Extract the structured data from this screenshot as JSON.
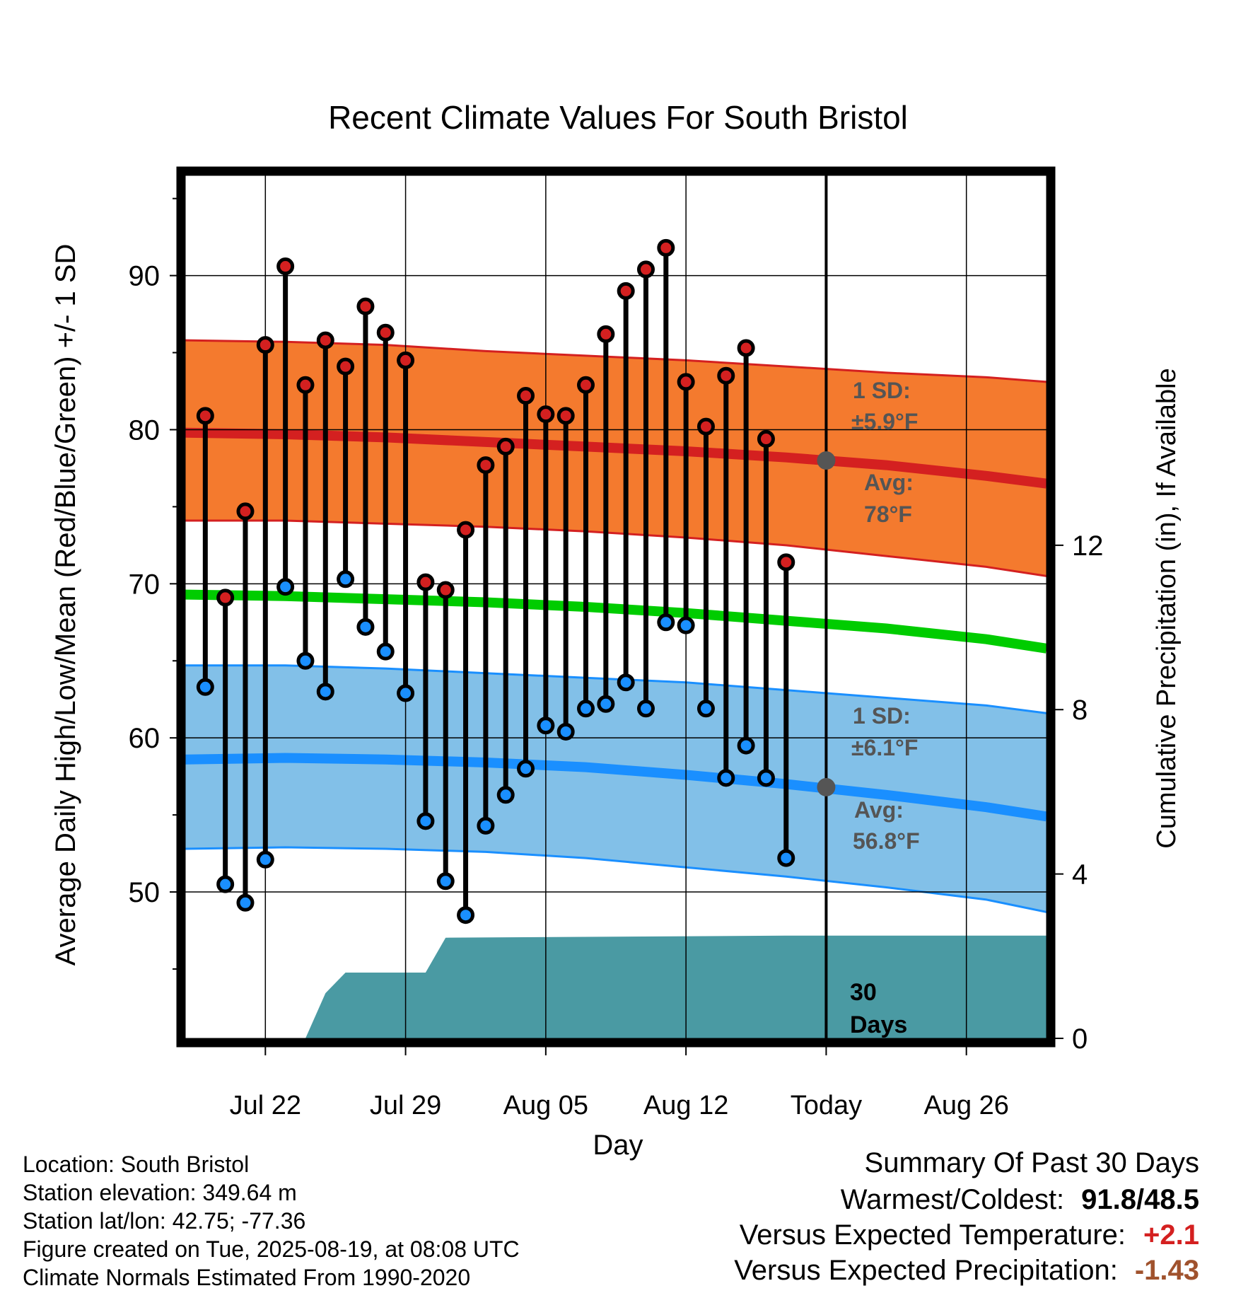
{
  "chart_data": {
    "type": "line",
    "title": "Recent Climate Values For South Bristol",
    "xlabel": "Day",
    "ylabel": "Average Daily High/Low/Mean (Red/Blue/Green) +/- 1 SD",
    "y2label": "Cumulative Precipitation (in), If Available",
    "ylim": [
      40.5,
      96.5
    ],
    "y2lim": [
      0,
      21
    ],
    "xlim": [
      "2025-07-18",
      "2025-08-30"
    ],
    "yticks": [
      "90",
      "80",
      "70",
      "60",
      "50"
    ],
    "y2ticks": [
      "12",
      "8",
      "4",
      "0"
    ],
    "xticks": [
      {
        "date": "2025-07-22",
        "label": "Jul 22"
      },
      {
        "date": "2025-07-29",
        "label": "Jul 29"
      },
      {
        "date": "2025-08-05",
        "label": "Aug 05"
      },
      {
        "date": "2025-08-12",
        "label": "Aug 12"
      },
      {
        "date": "2025-08-19",
        "label": "Today"
      },
      {
        "date": "2025-08-26",
        "label": "Aug 26"
      }
    ],
    "today": "2025-08-19",
    "window_label": "30 Days",
    "daily": {
      "dates": [
        "2025-07-19",
        "2025-07-20",
        "2025-07-21",
        "2025-07-22",
        "2025-07-23",
        "2025-07-24",
        "2025-07-25",
        "2025-07-26",
        "2025-07-27",
        "2025-07-28",
        "2025-07-29",
        "2025-07-30",
        "2025-07-31",
        "2025-08-01",
        "2025-08-02",
        "2025-08-03",
        "2025-08-04",
        "2025-08-05",
        "2025-08-06",
        "2025-08-07",
        "2025-08-08",
        "2025-08-09",
        "2025-08-10",
        "2025-08-11",
        "2025-08-12",
        "2025-08-13",
        "2025-08-14",
        "2025-08-15",
        "2025-08-16",
        "2025-08-17",
        "2025-08-18"
      ],
      "highs": [
        80.9,
        69.1,
        74.7,
        85.5,
        90.6,
        82.9,
        85.8,
        84.1,
        88.0,
        86.3,
        84.5,
        70.1,
        69.6,
        73.5,
        77.7,
        78.9,
        82.2,
        81.0,
        80.9,
        82.9,
        86.2,
        89.0,
        90.4,
        91.8,
        83.1,
        80.2,
        83.5,
        85.3,
        79.4,
        71.4,
        null
      ],
      "lows": [
        63.3,
        50.5,
        49.3,
        52.1,
        69.8,
        65.0,
        63.0,
        70.3,
        67.2,
        65.6,
        62.9,
        54.6,
        50.7,
        48.5,
        54.3,
        56.3,
        58.0,
        60.8,
        60.4,
        61.9,
        62.2,
        63.6,
        61.9,
        67.5,
        67.3,
        61.9,
        57.4,
        59.5,
        57.4,
        52.2,
        null
      ]
    },
    "normals": {
      "dates": [
        "2025-07-18",
        "2025-07-23",
        "2025-07-28",
        "2025-08-02",
        "2025-08-07",
        "2025-08-12",
        "2025-08-17",
        "2025-08-22",
        "2025-08-27",
        "2025-08-30"
      ],
      "high_avg": [
        79.8,
        79.7,
        79.5,
        79.2,
        78.9,
        78.6,
        78.2,
        77.7,
        77.0,
        76.5
      ],
      "high_upper": [
        85.8,
        85.7,
        85.5,
        85.1,
        84.8,
        84.5,
        84.1,
        83.7,
        83.4,
        83.1
      ],
      "high_lower": [
        74.1,
        74.1,
        73.9,
        73.7,
        73.4,
        73.0,
        72.5,
        71.8,
        71.1,
        70.5
      ],
      "mean_avg": [
        69.3,
        69.2,
        69.0,
        68.8,
        68.5,
        68.1,
        67.6,
        67.1,
        66.4,
        65.8
      ],
      "low_avg": [
        58.6,
        58.7,
        58.6,
        58.4,
        58.1,
        57.6,
        57.0,
        56.3,
        55.5,
        54.9
      ],
      "low_upper": [
        64.7,
        64.7,
        64.5,
        64.2,
        63.9,
        63.6,
        63.1,
        62.6,
        62.1,
        61.6
      ],
      "low_lower": [
        52.8,
        52.9,
        52.8,
        52.6,
        52.2,
        51.6,
        51.0,
        50.3,
        49.5,
        48.7
      ]
    },
    "precip_cumulative": {
      "dates": [
        "2025-07-18",
        "2025-07-24",
        "2025-07-25",
        "2025-07-26",
        "2025-07-27",
        "2025-07-28",
        "2025-07-29",
        "2025-07-30",
        "2025-07-31",
        "2025-08-17",
        "2025-08-30"
      ],
      "values": [
        0,
        0,
        1.1,
        1.6,
        1.6,
        1.6,
        1.6,
        1.6,
        2.45,
        2.5,
        2.5
      ]
    },
    "today_points": {
      "high_avg": 78,
      "low_avg": 56.8
    },
    "annotations": {
      "high_sd_label": "1 SD:",
      "high_sd_value": "±5.9°F",
      "high_avg_label": "Avg:",
      "high_avg_value": "78°F",
      "low_sd_label": "1 SD:",
      "low_sd_value": "±6.1°F",
      "low_avg_label": "Avg:",
      "low_avg_value": "56.8°F",
      "window_line1": "30",
      "window_line2": "Days"
    },
    "colors": {
      "high_band": "#f47a2e",
      "high_line": "#d42020",
      "mean_line": "#00cc00",
      "low_band": "#82c0e8",
      "low_line": "#1a8fff",
      "precip": "#4a9aa3",
      "high_marker": "#d42020",
      "low_marker": "#1a8fff",
      "annotation_text": "#555555",
      "today_marker": "#555555"
    }
  },
  "info": {
    "location": "Location: South Bristol",
    "elevation": "Station elevation: 349.64 m",
    "latlon": "Station lat/lon: 42.75; -77.36",
    "created": "Figure created on Tue, 2025-08-19, at 08:08 UTC",
    "normals": "Climate Normals Estimated From 1990-2020"
  },
  "summary": {
    "heading": "Summary Of Past 30 Days",
    "warm_cold_label": "Warmest/Coldest:",
    "warm_cold_value": "91.8/48.5",
    "temp_label": "Versus Expected Temperature:",
    "temp_value": "+2.1",
    "temp_color": "#d42020",
    "precip_label": "Versus Expected Precipitation:",
    "precip_value": "-1.43",
    "precip_color": "#a0522d"
  }
}
